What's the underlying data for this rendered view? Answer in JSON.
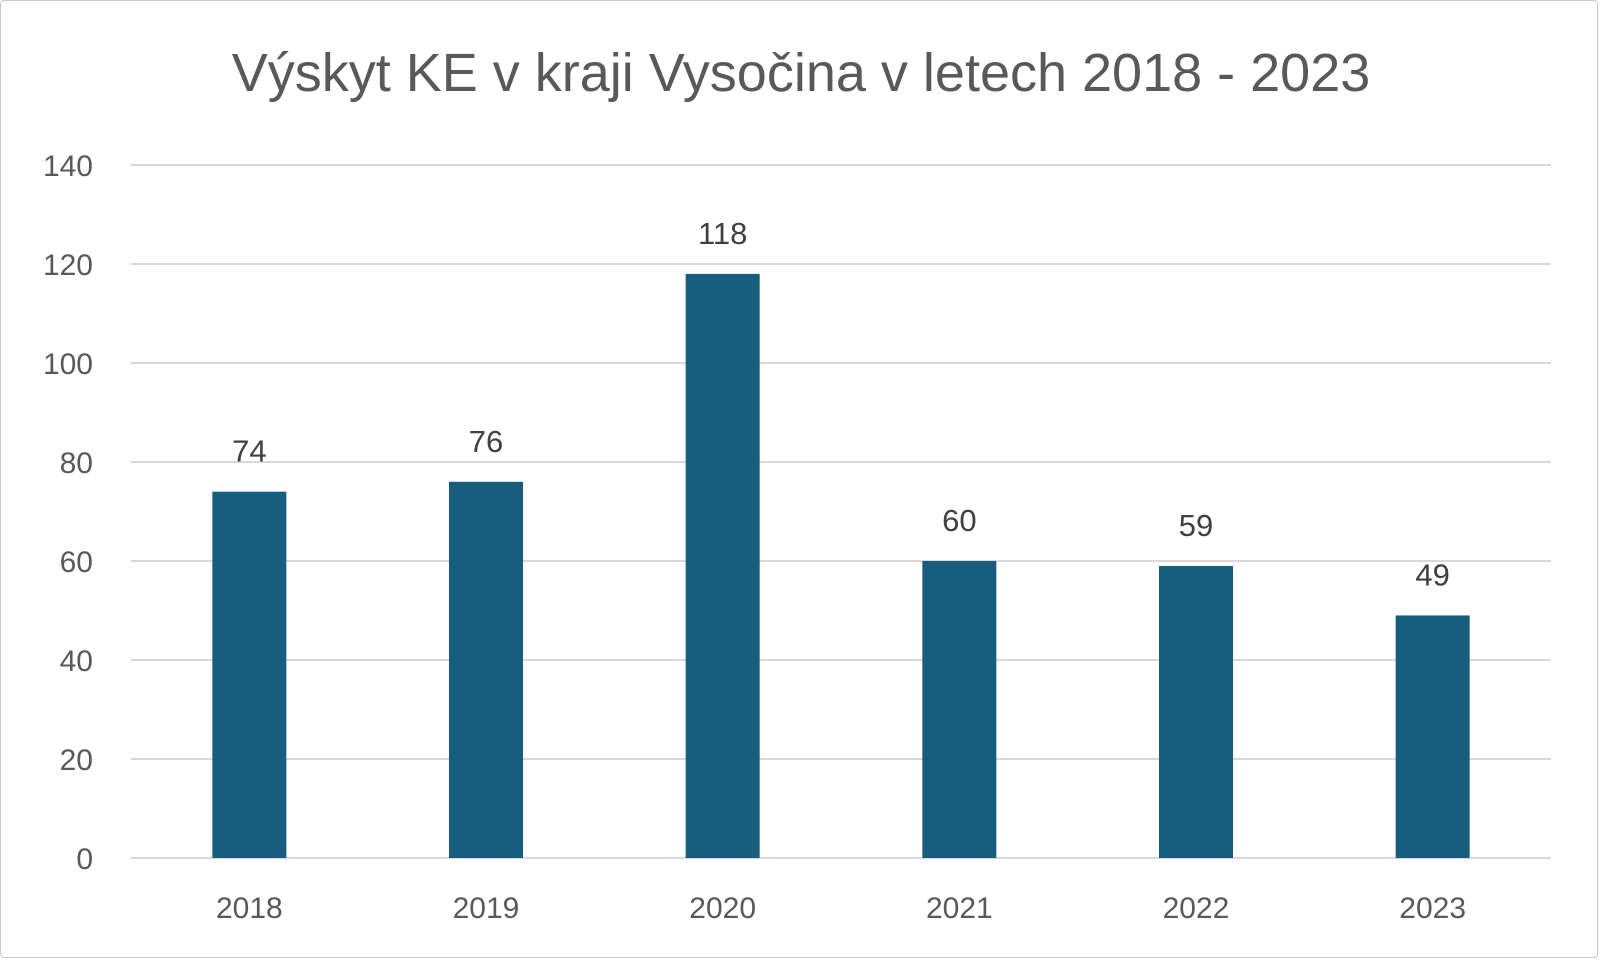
{
  "chart_data": {
    "type": "bar",
    "title": "Výskyt KE v kraji Vysočina v letech 2018 - 2023",
    "xlabel": "",
    "ylabel": "",
    "categories": [
      "2018",
      "2019",
      "2020",
      "2021",
      "2022",
      "2023"
    ],
    "values": [
      74,
      76,
      118,
      60,
      59,
      49
    ],
    "ylim": [
      0,
      140
    ],
    "yticks": [
      "0",
      "20",
      "40",
      "60",
      "80",
      "100",
      "120",
      "140"
    ],
    "grid": true,
    "legend": "none",
    "colors": {
      "bar": "#175e7e",
      "grid": "#d9d9d9",
      "text": "#595959"
    }
  }
}
